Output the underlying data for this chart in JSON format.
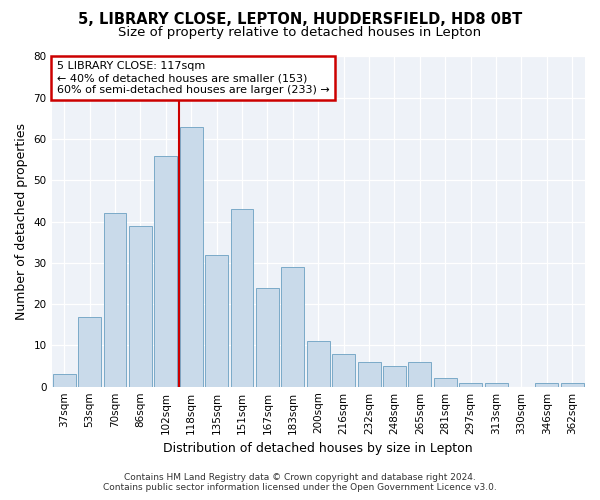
{
  "title1": "5, LIBRARY CLOSE, LEPTON, HUDDERSFIELD, HD8 0BT",
  "title2": "Size of property relative to detached houses in Lepton",
  "xlabel": "Distribution of detached houses by size in Lepton",
  "ylabel": "Number of detached properties",
  "categories": [
    "37sqm",
    "53sqm",
    "70sqm",
    "86sqm",
    "102sqm",
    "118sqm",
    "135sqm",
    "151sqm",
    "167sqm",
    "183sqm",
    "200sqm",
    "216sqm",
    "232sqm",
    "248sqm",
    "265sqm",
    "281sqm",
    "297sqm",
    "313sqm",
    "330sqm",
    "346sqm",
    "362sqm"
  ],
  "bar_heights": [
    3,
    17,
    42,
    39,
    56,
    63,
    32,
    43,
    24,
    29,
    11,
    8,
    6,
    5,
    6,
    2,
    1,
    1,
    0,
    1,
    1
  ],
  "bar_color": "#c9daea",
  "bar_edge_color": "#7aaac8",
  "vline_x": 4.5,
  "vline_color": "#cc0000",
  "annotation_title": "5 LIBRARY CLOSE: 117sqm",
  "annotation_line1": "← 40% of detached houses are smaller (153)",
  "annotation_line2": "60% of semi-detached houses are larger (233) →",
  "annotation_box_edgecolor": "#cc0000",
  "ylim": [
    0,
    80
  ],
  "yticks": [
    0,
    10,
    20,
    30,
    40,
    50,
    60,
    70,
    80
  ],
  "footer1": "Contains HM Land Registry data © Crown copyright and database right 2024.",
  "footer2": "Contains public sector information licensed under the Open Government Licence v3.0.",
  "bg_color": "#ffffff",
  "plot_bg_color": "#eef2f8",
  "grid_color": "#ffffff",
  "title_fontsize": 10.5,
  "subtitle_fontsize": 9.5,
  "axis_label_fontsize": 9,
  "tick_fontsize": 7.5,
  "annotation_fontsize": 8,
  "footer_fontsize": 6.5
}
